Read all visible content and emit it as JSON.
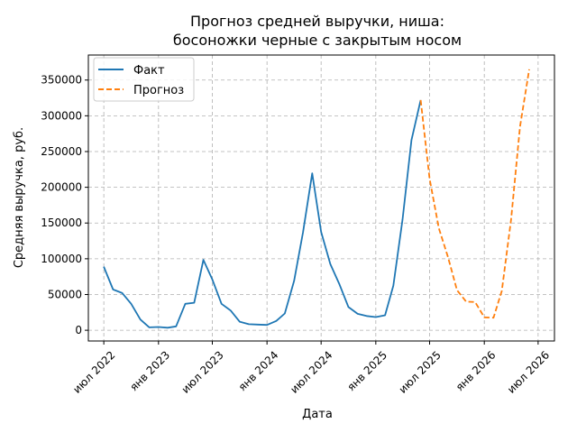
{
  "chart_data": {
    "type": "line",
    "title_lines": [
      "Прогноз средней выручки, ниша:",
      "босоножки черные с закрытым носом"
    ],
    "xlabel": "Дата",
    "ylabel": "Средняя выручка, руб.",
    "xlim": [
      "2022-05-10",
      "2026-08-25"
    ],
    "ylim": [
      -15000,
      385000
    ],
    "grid": true,
    "legend_position": "top-left",
    "x_ticks": [
      {
        "date": "2022-07-01",
        "label": "июл 2022"
      },
      {
        "date": "2023-01-01",
        "label": "янв 2023"
      },
      {
        "date": "2023-07-01",
        "label": "июл 2023"
      },
      {
        "date": "2024-01-01",
        "label": "янв 2024"
      },
      {
        "date": "2024-07-01",
        "label": "июл 2024"
      },
      {
        "date": "2025-01-01",
        "label": "янв 2025"
      },
      {
        "date": "2025-07-01",
        "label": "июл 2025"
      },
      {
        "date": "2026-01-01",
        "label": "янв 2026"
      },
      {
        "date": "2026-07-01",
        "label": "июл 2026"
      }
    ],
    "y_ticks": [
      0,
      50000,
      100000,
      150000,
      200000,
      250000,
      300000,
      350000
    ],
    "series": [
      {
        "name": "Факт",
        "color": "#1f77b4",
        "dash": "solid",
        "x": [
          "2022-07-01",
          "2022-08-01",
          "2022-09-01",
          "2022-10-01",
          "2022-11-01",
          "2022-12-01",
          "2023-01-01",
          "2023-02-01",
          "2023-03-01",
          "2023-04-01",
          "2023-05-01",
          "2023-06-01",
          "2023-07-01",
          "2023-08-01",
          "2023-09-01",
          "2023-10-01",
          "2023-11-01",
          "2023-12-01",
          "2024-01-01",
          "2024-02-01",
          "2024-03-01",
          "2024-04-01",
          "2024-05-01",
          "2024-06-01",
          "2024-07-01",
          "2024-08-01",
          "2024-09-01",
          "2024-10-01",
          "2024-11-01",
          "2024-12-01",
          "2025-01-01",
          "2025-02-01",
          "2025-03-01",
          "2025-04-01",
          "2025-05-01",
          "2025-06-01"
        ],
        "values": [
          89000,
          57000,
          52000,
          37000,
          15000,
          4000,
          4500,
          3500,
          5500,
          37000,
          38500,
          98500,
          71000,
          37000,
          27500,
          12000,
          8500,
          8000,
          7500,
          13000,
          23500,
          69000,
          137000,
          219500,
          137500,
          92500,
          64000,
          32500,
          23000,
          20000,
          18500,
          21000,
          62500,
          155000,
          266000,
          322000
        ]
      },
      {
        "name": "Прогноз",
        "color": "#ff7f0e",
        "dash": "dashed",
        "x": [
          "2025-06-01",
          "2025-07-01",
          "2025-08-01",
          "2025-09-01",
          "2025-10-01",
          "2025-11-01",
          "2025-12-01",
          "2026-01-01",
          "2026-02-01",
          "2026-03-01",
          "2026-04-01",
          "2026-05-01",
          "2026-06-01"
        ],
        "values": [
          322000,
          212000,
          143000,
          102000,
          56000,
          40000,
          39500,
          18000,
          17500,
          55000,
          155000,
          285000,
          365000
        ]
      }
    ]
  }
}
